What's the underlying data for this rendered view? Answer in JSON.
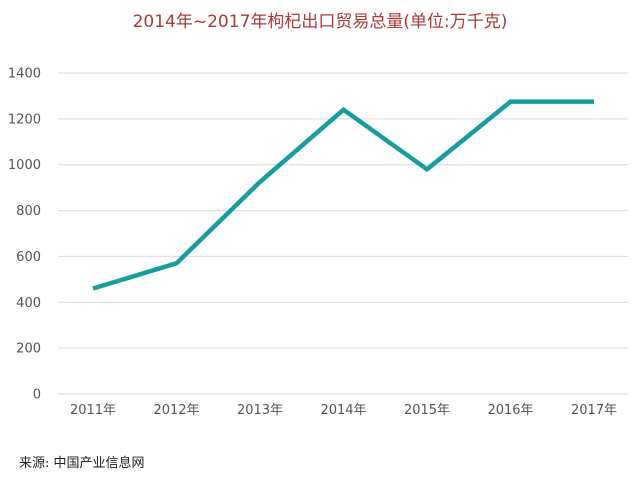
{
  "chart_data": {
    "type": "line",
    "title": "2014年~2017年枸杞出口贸易总量(单位:万千克)",
    "xlabel": "",
    "ylabel": "",
    "categories": [
      "2011年",
      "2012年",
      "2013年",
      "2014年",
      "2015年",
      "2016年",
      "2017年"
    ],
    "series": [
      {
        "values": [
          460,
          570,
          925,
          1240,
          980,
          1275,
          1275
        ]
      }
    ],
    "ylim": [
      0,
      1400
    ],
    "yticks": [
      0,
      200,
      400,
      600,
      800,
      1000,
      1200,
      1400
    ],
    "grid": true,
    "legend": "none",
    "colors": {
      "line": "#169e9e",
      "grid": "#d9d9d9",
      "title": "#a83a3a"
    }
  },
  "source": "来源: 中国产业信息网"
}
